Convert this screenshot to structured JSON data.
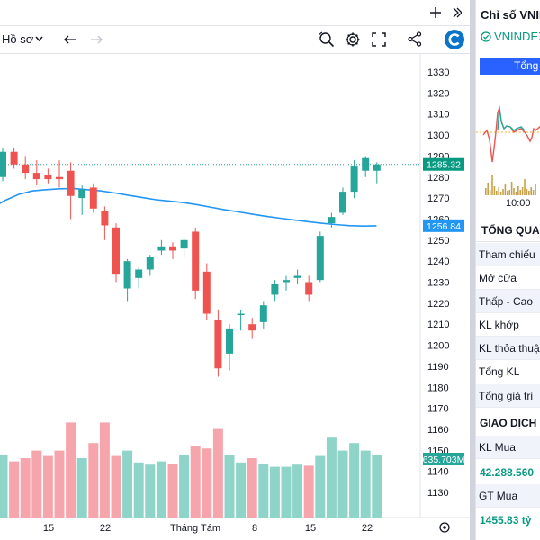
{
  "toolbar": {
    "profile_label": "Hồ sơ",
    "icons": [
      "plus-icon",
      "chevron-right-icon",
      "chevron-down-icon",
      "undo-icon",
      "redo-icon",
      "zoom-icon",
      "gear-icon",
      "fullscreen-icon",
      "share-icon",
      "brand-logo"
    ]
  },
  "colors": {
    "up": "#26a69a",
    "down": "#ef5350",
    "vol_up": "#8fd4c8",
    "vol_down": "#f7a5ad",
    "ma": "#2196f3",
    "accent": "#2962ff"
  },
  "chart_data": {
    "type": "candlestick",
    "yaxis_ticks": [
      1330,
      1320,
      1310,
      1300,
      1290,
      1280,
      1270,
      1260,
      1250,
      1240,
      1230,
      1220,
      1210,
      1200,
      1190,
      1180,
      1170,
      1160,
      1150,
      1140,
      1130
    ],
    "ylim": [
      1124,
      1336
    ],
    "xaxis_labels": [
      "15",
      "22",
      "Tháng Tám",
      "8",
      "15",
      "22"
    ],
    "last_price_label": "1285.32",
    "ma_label": "1256.84",
    "volume_label": "635.703M",
    "candles": [
      {
        "o": 1280,
        "h": 1294,
        "l": 1278,
        "c": 1292
      },
      {
        "o": 1292,
        "h": 1294,
        "l": 1284,
        "c": 1286
      },
      {
        "o": 1286,
        "h": 1290,
        "l": 1279,
        "c": 1282
      },
      {
        "o": 1282,
        "h": 1288,
        "l": 1276,
        "c": 1279
      },
      {
        "o": 1281,
        "h": 1284,
        "l": 1277,
        "c": 1279
      },
      {
        "o": 1280,
        "h": 1288,
        "l": 1275,
        "c": 1279
      },
      {
        "o": 1283,
        "h": 1287,
        "l": 1260,
        "c": 1271
      },
      {
        "o": 1270,
        "h": 1276,
        "l": 1262,
        "c": 1274
      },
      {
        "o": 1275,
        "h": 1277,
        "l": 1263,
        "c": 1265
      },
      {
        "o": 1264,
        "h": 1266,
        "l": 1250,
        "c": 1257
      },
      {
        "o": 1256,
        "h": 1258,
        "l": 1230,
        "c": 1234
      },
      {
        "o": 1227,
        "h": 1241,
        "l": 1221,
        "c": 1240
      },
      {
        "o": 1232,
        "h": 1237,
        "l": 1227,
        "c": 1236
      },
      {
        "o": 1236,
        "h": 1243,
        "l": 1233,
        "c": 1242
      },
      {
        "o": 1245,
        "h": 1250,
        "l": 1243,
        "c": 1247
      },
      {
        "o": 1247,
        "h": 1249,
        "l": 1241,
        "c": 1245
      },
      {
        "o": 1246,
        "h": 1251,
        "l": 1242,
        "c": 1250
      },
      {
        "o": 1254,
        "h": 1256,
        "l": 1222,
        "c": 1226
      },
      {
        "o": 1235,
        "h": 1239,
        "l": 1212,
        "c": 1215
      },
      {
        "o": 1212,
        "h": 1217,
        "l": 1185,
        "c": 1189
      },
      {
        "o": 1196,
        "h": 1210,
        "l": 1188,
        "c": 1208
      },
      {
        "o": 1215,
        "h": 1217,
        "l": 1207,
        "c": 1215
      },
      {
        "o": 1210,
        "h": 1213,
        "l": 1203,
        "c": 1207
      },
      {
        "o": 1211,
        "h": 1221,
        "l": 1208,
        "c": 1219
      },
      {
        "o": 1224,
        "h": 1231,
        "l": 1221,
        "c": 1229
      },
      {
        "o": 1230,
        "h": 1233,
        "l": 1226,
        "c": 1231
      },
      {
        "o": 1232,
        "h": 1236,
        "l": 1229,
        "c": 1233
      },
      {
        "o": 1230,
        "h": 1233,
        "l": 1221,
        "c": 1224
      },
      {
        "o": 1231,
        "h": 1254,
        "l": 1230,
        "c": 1252
      },
      {
        "o": 1258,
        "h": 1263,
        "l": 1256,
        "c": 1261
      },
      {
        "o": 1263,
        "h": 1275,
        "l": 1262,
        "c": 1273
      },
      {
        "o": 1273,
        "h": 1288,
        "l": 1270,
        "c": 1285
      },
      {
        "o": 1283,
        "h": 1290,
        "l": 1280,
        "c": 1289
      },
      {
        "o": 1283,
        "h": 1287,
        "l": 1277,
        "c": 1286
      }
    ],
    "volumes": [
      0.58,
      0.52,
      0.55,
      0.62,
      0.57,
      0.62,
      0.88,
      0.55,
      0.69,
      0.88,
      0.57,
      0.62,
      0.51,
      0.49,
      0.52,
      0.5,
      0.58,
      0.66,
      0.64,
      0.82,
      0.58,
      0.51,
      0.55,
      0.5,
      0.47,
      0.47,
      0.49,
      0.48,
      0.57,
      0.74,
      0.62,
      0.69,
      0.62,
      0.58
    ],
    "ma": [
      1265.0,
      1268.8,
      1271.7,
      1273.4,
      1274.0,
      1274.4,
      1274.5,
      1274.0,
      1273.4,
      1272.4,
      1271.3,
      1270.2,
      1269.2,
      1268.5,
      1267.8,
      1266.8,
      1265.6,
      1264.4,
      1263.4,
      1262.3,
      1261.3,
      1260.4,
      1259.6,
      1258.8,
      1258.0,
      1257.4,
      1256.9,
      1256.7,
      1256.8
    ]
  },
  "right_panel": {
    "title": "Chỉ số VNINDEX",
    "index_label": "VNINDEX",
    "tab_label": "Tổng",
    "mini_time_label": "10:00",
    "section_overview": "TỔNG QUAN",
    "rows": [
      "Tham chiếu",
      "Mở cửa",
      "Thấp - Cao",
      "KL khớp",
      "KL thỏa thuận",
      "Tổng KL",
      "Tổng giá trị"
    ],
    "section_trading": "GIAO DỊCH N",
    "kl_mua_label": "KL Mua",
    "kl_mua_value": "42.288.560",
    "gt_mua_label": "GT Mua",
    "gt_mua_value": "1455.83 tỷ"
  }
}
